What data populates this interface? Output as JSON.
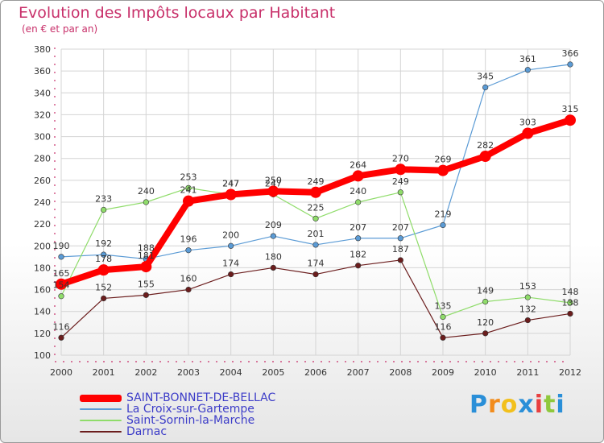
{
  "chart_data": {
    "type": "line",
    "title": "Evolution des Impôts locaux par Habitant",
    "subtitle": "(en € et par an)",
    "x": [
      "2000",
      "2001",
      "2002",
      "2003",
      "2004",
      "2005",
      "2006",
      "2007",
      "2008",
      "2009",
      "2010",
      "2011",
      "2012"
    ],
    "ylim": [
      100,
      380
    ],
    "yticks": [
      "100",
      "120",
      "140",
      "160",
      "180",
      "200",
      "220",
      "240",
      "260",
      "280",
      "300",
      "320",
      "340",
      "360",
      "380"
    ],
    "grid": true,
    "legend_position": "bottom-left",
    "series": [
      {
        "name": "La Croix-sur-Gartempe",
        "color": "#5b9bd5",
        "values": [
          190,
          192,
          188,
          196,
          200,
          209,
          201,
          207,
          207,
          219,
          345,
          361,
          366
        ],
        "labels": [
          "190",
          "192",
          "188",
          "196",
          "200",
          "209",
          "201",
          "207",
          "207",
          "219",
          "345",
          "361",
          "366"
        ]
      },
      {
        "name": "Saint-Sornin-la-Marche",
        "color": "#8fdc6a",
        "values": [
          154,
          233,
          240,
          253,
          247,
          247,
          225,
          240,
          249,
          135,
          149,
          153,
          148
        ],
        "labels": [
          "154",
          "233",
          "240",
          "253",
          "247",
          "247",
          "225",
          "240",
          "249",
          "135",
          "149",
          "153",
          "148"
        ]
      },
      {
        "name": "Darnac",
        "color": "#6b1d1d",
        "values": [
          116,
          152,
          155,
          160,
          174,
          180,
          174,
          182,
          187,
          116,
          120,
          132,
          138
        ],
        "labels": [
          "116",
          "152",
          "155",
          "160",
          "174",
          "180",
          "174",
          "182",
          "187",
          "116",
          "120",
          "132",
          "138"
        ]
      },
      {
        "name": "SAINT-BONNET-DE-BELLAC",
        "color": "#ff0000",
        "values": [
          165,
          178,
          181,
          241,
          247,
          250,
          249,
          264,
          270,
          269,
          282,
          303,
          315
        ],
        "labels": [
          "165",
          "178",
          "181",
          "241",
          "247",
          "250",
          "249",
          "264",
          "270",
          "269",
          "282",
          "303",
          "315"
        ]
      }
    ],
    "legend": [
      {
        "name": "SAINT-BONNET-DE-BELLAC",
        "color": "#ff0000"
      },
      {
        "name": "La Croix-sur-Gartempe",
        "color": "#5b9bd5"
      },
      {
        "name": "Saint-Sornin-la-Marche",
        "color": "#8fdc6a"
      },
      {
        "name": "Darnac",
        "color": "#6b1d1d"
      }
    ]
  },
  "logo": {
    "text": "Proxiti",
    "letters": [
      "P",
      "r",
      "o",
      "x",
      "i",
      "t",
      "i"
    ],
    "colors": [
      "#2a8fd8",
      "#f28c1c",
      "#f2c01c",
      "#2a8fd8",
      "#e84040",
      "#8fc83c",
      "#2a8fd8"
    ]
  }
}
